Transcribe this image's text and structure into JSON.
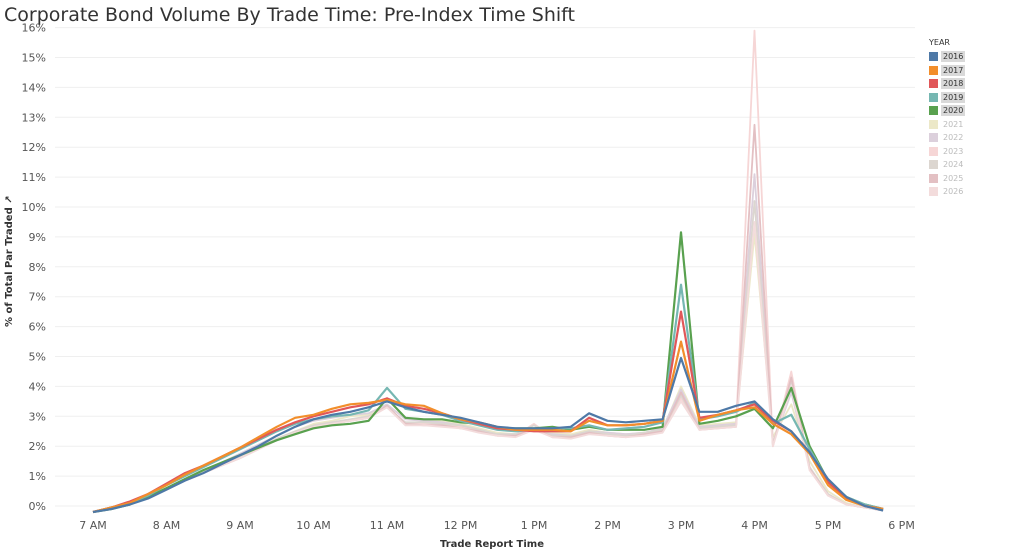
{
  "chart_data": {
    "type": "line",
    "title": "Corporate Bond Volume By Trade Time: Pre-Index Time Shift",
    "xlabel": "Trade Report Time",
    "ylabel": "% of Total Par Traded",
    "ylabel_suffix": "↗",
    "x_ticks": [
      "7 AM",
      "8 AM",
      "9 AM",
      "10 AM",
      "11 AM",
      "12 PM",
      "1 PM",
      "2 PM",
      "3 PM",
      "4 PM",
      "5 PM",
      "6 PM"
    ],
    "x_range_hours": [
      6.5,
      18.25
    ],
    "y_ticks": [
      "0%",
      "1%",
      "2%",
      "3%",
      "4%",
      "5%",
      "6%",
      "7%",
      "8%",
      "9%",
      "10%",
      "11%",
      "12%",
      "13%",
      "14%",
      "15%",
      "16%"
    ],
    "ylim": [
      -0.2,
      16.2
    ],
    "legend_title": "YEAR",
    "legend_position": "right",
    "grid": "horizontal",
    "x_hours": [
      7,
      7.25,
      7.5,
      7.75,
      8,
      8.25,
      8.5,
      8.75,
      9,
      9.25,
      9.5,
      9.75,
      10,
      10.25,
      10.5,
      10.75,
      11,
      11.25,
      11.5,
      11.75,
      12,
      12.25,
      12.5,
      12.75,
      13,
      13.25,
      13.5,
      13.75,
      14,
      14.25,
      14.5,
      14.75,
      15,
      15.25,
      15.5,
      15.75,
      16,
      16.25,
      16.5,
      16.75,
      17,
      17.25,
      17.5,
      17.75
    ],
    "series": [
      {
        "name": "2016",
        "color": "#4e79a7",
        "active": true,
        "values": [
          -0.2,
          -0.1,
          0.05,
          0.25,
          0.55,
          0.85,
          1.1,
          1.4,
          1.7,
          2.0,
          2.35,
          2.65,
          2.9,
          3.05,
          3.15,
          3.3,
          3.5,
          3.3,
          3.15,
          3.05,
          2.95,
          2.8,
          2.65,
          2.6,
          2.6,
          2.6,
          2.65,
          3.1,
          2.85,
          2.8,
          2.85,
          2.9,
          4.95,
          3.15,
          3.15,
          3.35,
          3.5,
          2.9,
          2.5,
          1.8,
          0.9,
          0.3,
          0.0,
          -0.15
        ]
      },
      {
        "name": "2017",
        "color": "#f28e2b",
        "active": true,
        "values": [
          -0.2,
          -0.05,
          0.1,
          0.4,
          0.7,
          1.05,
          1.35,
          1.65,
          1.95,
          2.3,
          2.65,
          2.95,
          3.05,
          3.25,
          3.4,
          3.45,
          3.55,
          3.4,
          3.35,
          3.1,
          2.9,
          2.8,
          2.65,
          2.55,
          2.55,
          2.55,
          2.5,
          2.85,
          2.7,
          2.7,
          2.75,
          2.85,
          5.5,
          2.85,
          3.05,
          3.2,
          3.3,
          2.75,
          2.4,
          1.75,
          0.7,
          0.2,
          0.0,
          -0.1
        ]
      },
      {
        "name": "2018",
        "color": "#e15759",
        "active": true,
        "values": [
          -0.2,
          -0.05,
          0.15,
          0.4,
          0.75,
          1.1,
          1.35,
          1.65,
          1.95,
          2.25,
          2.55,
          2.8,
          3.0,
          3.15,
          3.3,
          3.4,
          3.6,
          3.35,
          3.25,
          3.1,
          2.9,
          2.75,
          2.6,
          2.55,
          2.5,
          2.5,
          2.5,
          2.95,
          2.7,
          2.7,
          2.75,
          2.85,
          6.5,
          2.95,
          3.05,
          3.2,
          3.4,
          2.85,
          2.5,
          1.8,
          0.8,
          0.25,
          0.0,
          -0.1
        ]
      },
      {
        "name": "2019",
        "color": "#76b7b2",
        "active": true,
        "values": [
          -0.2,
          -0.05,
          0.1,
          0.35,
          0.7,
          1.0,
          1.3,
          1.6,
          1.9,
          2.2,
          2.5,
          2.75,
          2.9,
          3.0,
          3.05,
          3.2,
          3.95,
          3.25,
          3.15,
          3.05,
          2.85,
          2.7,
          2.55,
          2.5,
          2.55,
          2.6,
          2.6,
          2.7,
          2.55,
          2.6,
          2.65,
          2.8,
          7.4,
          2.9,
          3.0,
          3.15,
          3.45,
          2.75,
          3.05,
          1.9,
          0.85,
          0.3,
          0.05,
          -0.1
        ]
      },
      {
        "name": "2020",
        "color": "#59a14f",
        "active": true,
        "values": [
          -0.2,
          -0.1,
          0.05,
          0.3,
          0.6,
          0.9,
          1.2,
          1.45,
          1.7,
          1.95,
          2.2,
          2.4,
          2.6,
          2.7,
          2.75,
          2.85,
          3.6,
          2.95,
          2.9,
          2.9,
          2.8,
          2.75,
          2.6,
          2.6,
          2.6,
          2.65,
          2.55,
          2.65,
          2.55,
          2.55,
          2.55,
          2.65,
          9.15,
          2.75,
          2.85,
          3.0,
          3.25,
          2.6,
          3.95,
          2.0,
          0.85,
          0.3,
          0.05,
          -0.1
        ]
      },
      {
        "name": "2021",
        "color": "#ece8c8",
        "active": false,
        "values": [
          -0.2,
          -0.1,
          0.05,
          0.3,
          0.6,
          0.9,
          1.15,
          1.4,
          1.7,
          1.95,
          2.25,
          2.5,
          2.75,
          2.85,
          3.0,
          3.05,
          3.35,
          2.95,
          2.9,
          2.85,
          2.75,
          2.6,
          2.45,
          2.4,
          2.6,
          2.45,
          2.4,
          2.55,
          2.45,
          2.4,
          2.45,
          2.55,
          4.0,
          2.7,
          2.75,
          2.8,
          9.1,
          2.3,
          3.4,
          1.5,
          0.5,
          0.1,
          -0.05,
          -0.15
        ]
      },
      {
        "name": "2022",
        "color": "#dcd0dc",
        "active": false,
        "values": [
          -0.2,
          -0.1,
          0.05,
          0.3,
          0.6,
          0.9,
          1.15,
          1.45,
          1.75,
          2.05,
          2.35,
          2.65,
          2.85,
          2.95,
          3.05,
          3.1,
          3.4,
          2.9,
          2.85,
          2.8,
          2.7,
          2.55,
          2.4,
          2.4,
          2.55,
          2.4,
          2.35,
          2.5,
          2.45,
          2.4,
          2.45,
          2.6,
          3.9,
          2.65,
          2.7,
          2.75,
          11.1,
          2.1,
          3.8,
          1.3,
          0.4,
          0.05,
          -0.05,
          -0.15
        ]
      },
      {
        "name": "2023",
        "color": "#f6d6d6",
        "active": false,
        "values": [
          -0.2,
          -0.1,
          0.05,
          0.3,
          0.55,
          0.85,
          1.1,
          1.35,
          1.6,
          1.9,
          2.2,
          2.45,
          2.65,
          2.75,
          2.85,
          2.95,
          3.3,
          2.75,
          2.75,
          2.7,
          2.65,
          2.5,
          2.35,
          2.35,
          2.75,
          2.3,
          2.3,
          2.45,
          2.4,
          2.35,
          2.4,
          2.5,
          3.6,
          2.6,
          2.65,
          2.7,
          15.9,
          2.0,
          4.5,
          1.2,
          0.35,
          0.05,
          -0.05,
          -0.15
        ]
      },
      {
        "name": "2024",
        "color": "#dcd6d0",
        "active": false,
        "values": [
          -0.2,
          -0.1,
          0.05,
          0.3,
          0.6,
          0.9,
          1.15,
          1.4,
          1.65,
          1.95,
          2.25,
          2.5,
          2.7,
          2.8,
          2.9,
          3.0,
          3.3,
          2.8,
          2.8,
          2.75,
          2.7,
          2.55,
          2.4,
          2.4,
          2.7,
          2.35,
          2.35,
          2.5,
          2.4,
          2.35,
          2.45,
          2.55,
          3.7,
          2.6,
          2.65,
          2.7,
          10.2,
          2.05,
          4.2,
          1.3,
          0.4,
          0.05,
          -0.05,
          -0.15
        ]
      },
      {
        "name": "2025",
        "color": "#e3c0c3",
        "active": false,
        "values": [
          -0.2,
          -0.1,
          0.05,
          0.3,
          0.55,
          0.85,
          1.1,
          1.35,
          1.6,
          1.9,
          2.2,
          2.45,
          2.65,
          2.75,
          2.85,
          2.95,
          3.35,
          2.75,
          2.7,
          2.7,
          2.6,
          2.5,
          2.35,
          2.35,
          2.6,
          2.3,
          2.3,
          2.45,
          2.35,
          2.3,
          2.4,
          2.5,
          3.8,
          2.55,
          2.6,
          2.65,
          12.75,
          2.0,
          4.3,
          1.25,
          0.35,
          0.05,
          -0.05,
          -0.15
        ]
      },
      {
        "name": "2026",
        "color": "#f3dcdc",
        "active": false,
        "values": [
          -0.2,
          -0.1,
          0.05,
          0.3,
          0.55,
          0.85,
          1.1,
          1.35,
          1.6,
          1.9,
          2.2,
          2.45,
          2.65,
          2.75,
          2.85,
          2.95,
          3.3,
          2.7,
          2.7,
          2.65,
          2.6,
          2.45,
          2.35,
          2.3,
          2.55,
          2.3,
          2.25,
          2.4,
          2.35,
          2.3,
          2.35,
          2.45,
          3.5,
          2.55,
          2.6,
          2.65,
          9.5,
          2.0,
          4.0,
          1.2,
          0.35,
          0.05,
          -0.05,
          -0.15
        ]
      }
    ]
  }
}
